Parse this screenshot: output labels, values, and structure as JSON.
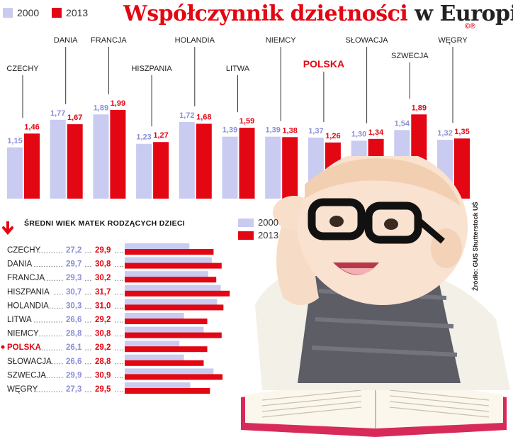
{
  "title": "Współczynnik dzietności",
  "title_suffix": "w Europie",
  "copyright_mark": "©℗",
  "credits": "Źródło: GUS   Shutterstock   UŚ",
  "legend": {
    "y2000": "2000",
    "y2013": "2013"
  },
  "colors": {
    "y2000": "#c9cbf1",
    "y2013": "#e30613",
    "label2000": "#8b8fd6",
    "label2013": "#e30613",
    "highlight": "#e30613"
  },
  "illustration": "baby-with-glasses-reading-book-photo",
  "chart_data": [
    {
      "type": "bar",
      "title": "Współczynnik dzietności w Europie",
      "categories": [
        "CZECHY",
        "DANIA",
        "FRANCJA",
        "HISZPANIA",
        "HOLANDIA",
        "LITWA",
        "NIEMCY",
        "POLSKA",
        "SŁOWACJA",
        "SZWECJA",
        "WĘGRY"
      ],
      "value_labels": {
        "2000": [
          "1,15",
          "1,77",
          "1,89",
          "1,23",
          "1,72",
          "1,39",
          "1,39",
          "1,37",
          "1,30",
          "1,54",
          "1,32"
        ],
        "2013": [
          "1,46",
          "1,67",
          "1,99",
          "1,27",
          "1,68",
          "1,59",
          "1,38",
          "1,26",
          "1,34",
          "1,89",
          "1,35"
        ]
      },
      "series": [
        {
          "name": "2000",
          "values": [
            1.15,
            1.77,
            1.89,
            1.23,
            1.72,
            1.39,
            1.39,
            1.37,
            1.3,
            1.54,
            1.32
          ]
        },
        {
          "name": "2013",
          "values": [
            1.46,
            1.67,
            1.99,
            1.27,
            1.68,
            1.59,
            1.38,
            1.26,
            1.34,
            1.89,
            1.35
          ]
        }
      ],
      "highlight": "POLSKA",
      "ylim": [
        0,
        2.6
      ],
      "grid": false,
      "legend": "top-left"
    },
    {
      "type": "bar",
      "orientation": "horizontal",
      "title": "ŚREDNI WIEK MATEK RODZĄCYCH DZIECI",
      "categories": [
        "CZECHY",
        "DANIA",
        "FRANCJA",
        "HISZPANIA",
        "HOLANDIA",
        "LITWA",
        "NIEMCY",
        "POLSKA",
        "SŁOWACJA",
        "SZWECJA",
        "WĘGRY"
      ],
      "value_labels": {
        "2000": [
          "27,2",
          "29,7",
          "29,3",
          "30,7",
          "30,3",
          "26,6",
          "28,8",
          "26,1",
          "26,6",
          "29,9",
          "27,3"
        ],
        "2013": [
          "29,9",
          "30,8",
          "30,2",
          "31,7",
          "31,0",
          "29,2",
          "30,8",
          "29,2",
          "28,8",
          "30,9",
          "29,5"
        ]
      },
      "series": [
        {
          "name": "2000",
          "values": [
            27.2,
            29.7,
            29.3,
            30.7,
            30.3,
            26.6,
            28.8,
            26.1,
            26.6,
            29.9,
            27.3
          ]
        },
        {
          "name": "2013",
          "values": [
            29.9,
            30.8,
            30.2,
            31.7,
            31.0,
            29.2,
            30.8,
            29.2,
            28.8,
            30.9,
            29.5
          ]
        }
      ],
      "highlight": "POLSKA",
      "xlim": [
        0,
        31.7
      ],
      "grid": false,
      "legend": "top-right"
    }
  ]
}
